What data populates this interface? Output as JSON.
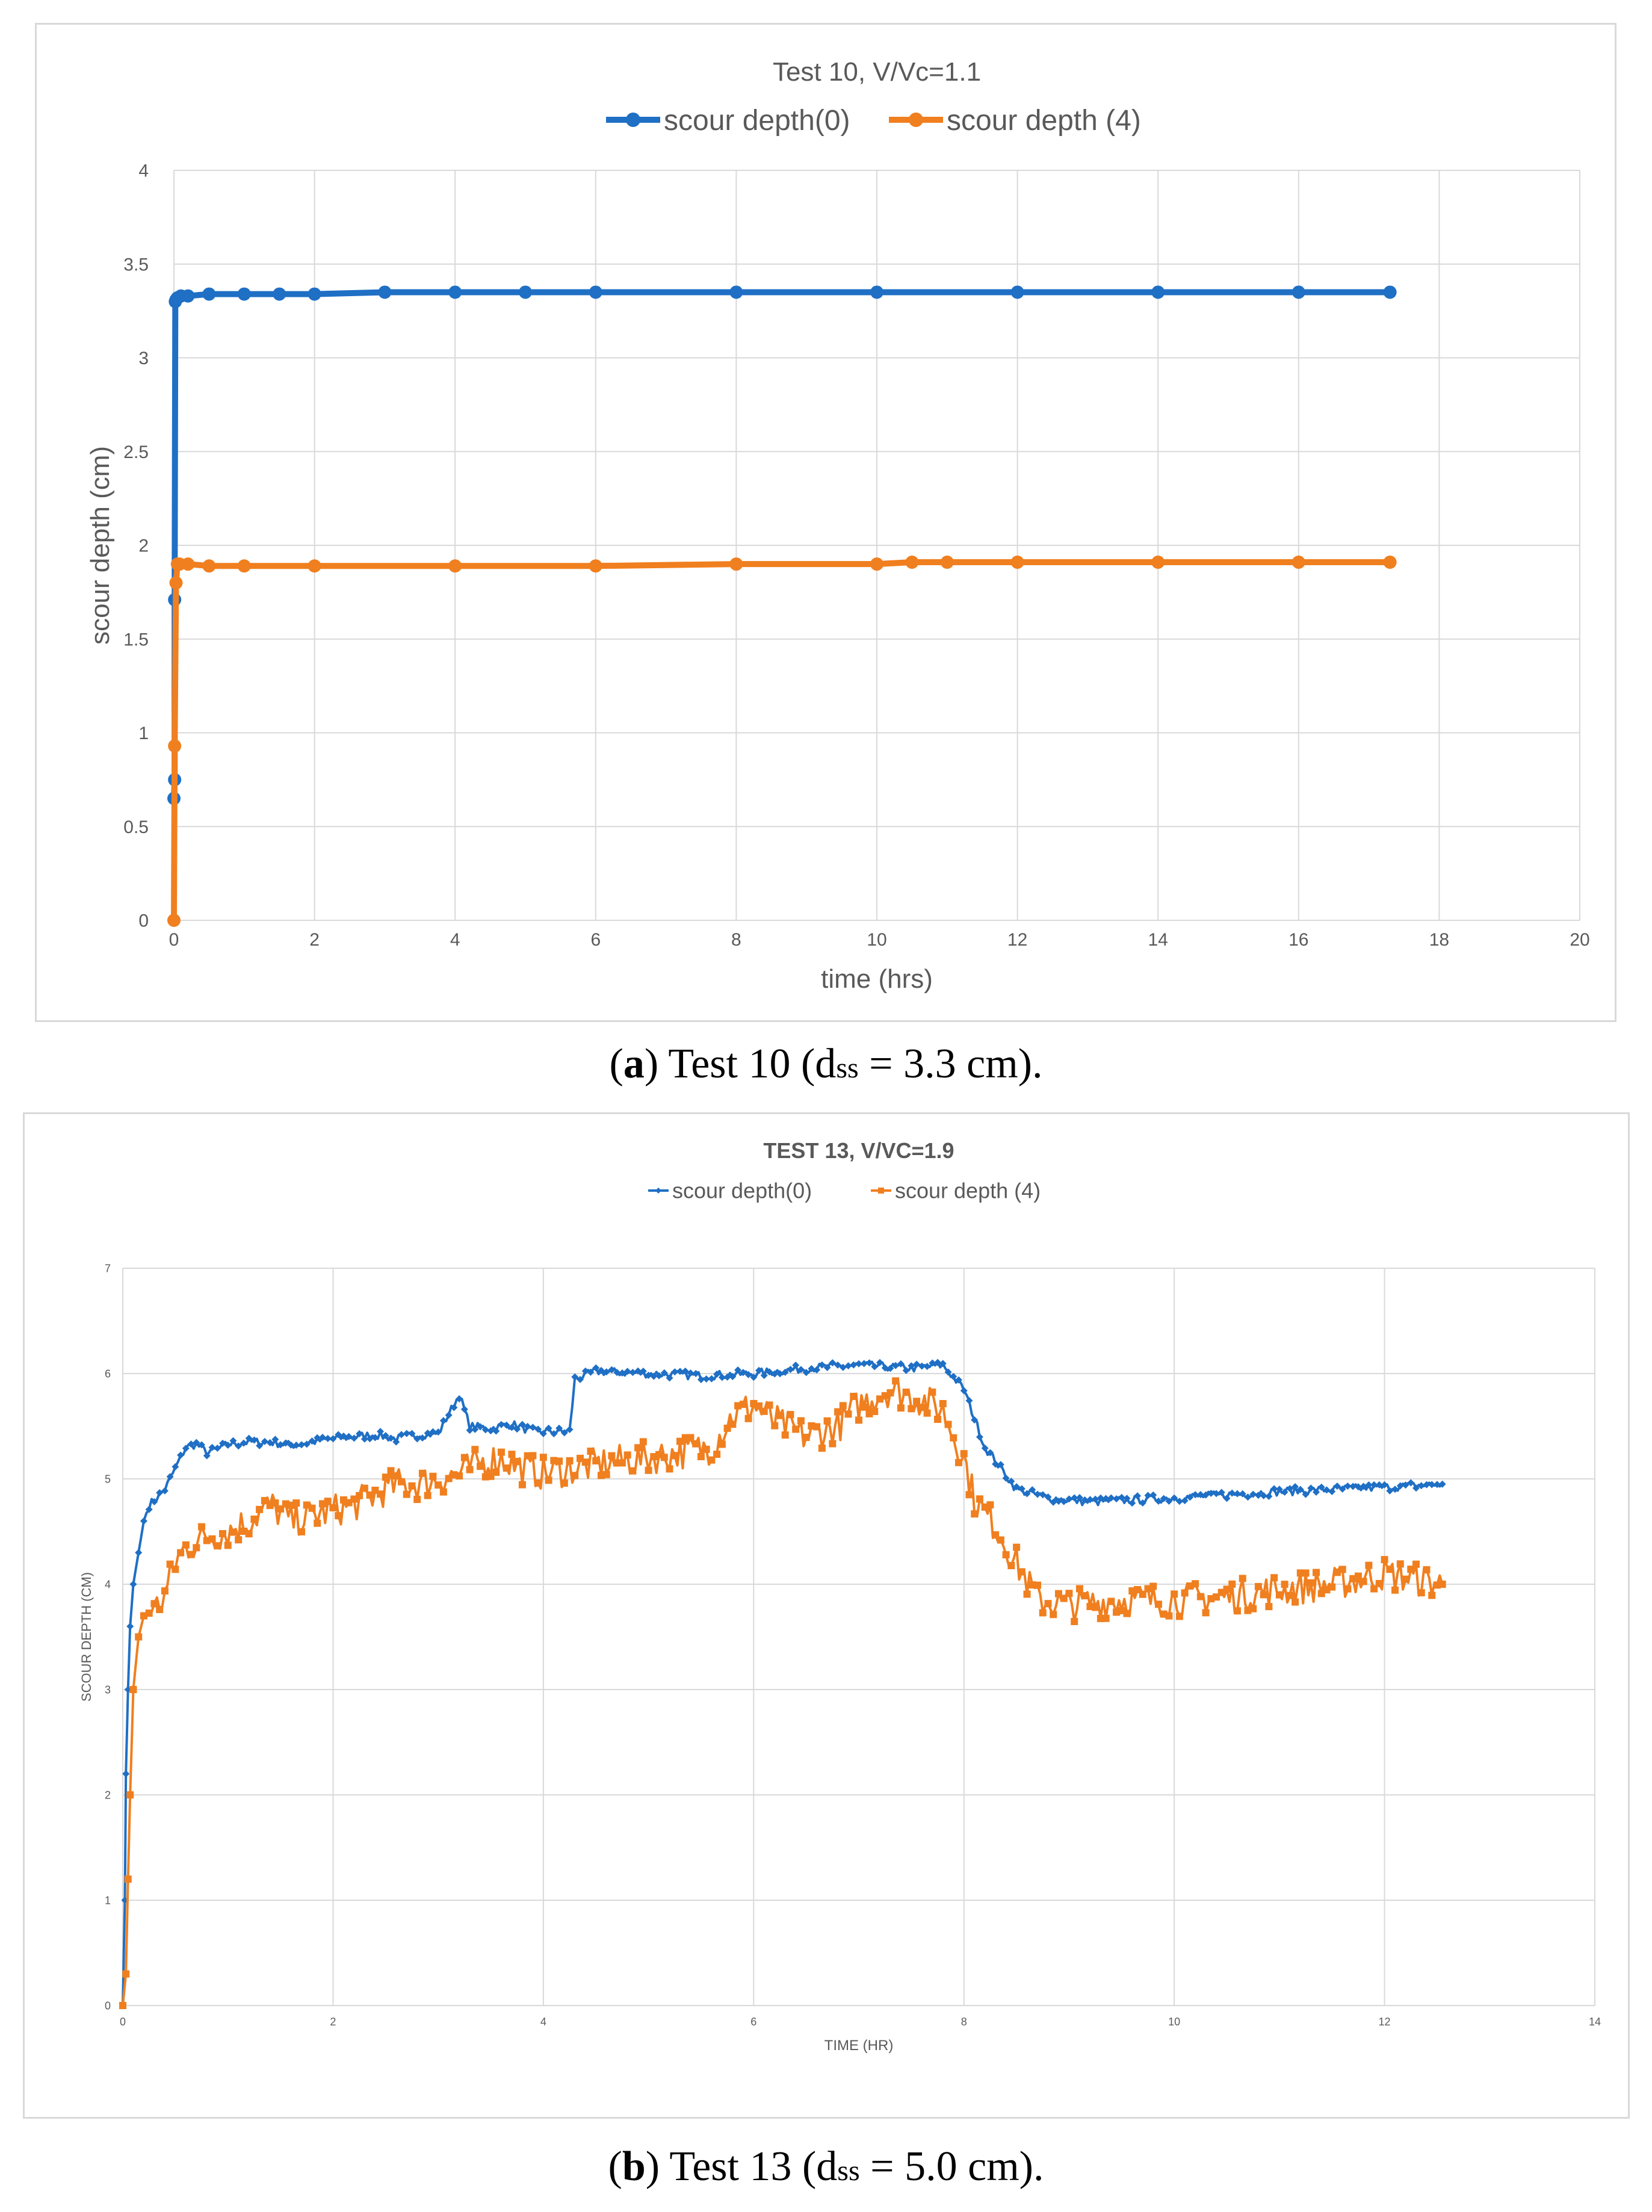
{
  "captions": {
    "a": {
      "label": "a",
      "pre": ") Test 10 (d",
      "sub": "ss",
      "post": " = 3.3 cm)."
    },
    "b": {
      "label": "b",
      "pre": ") Test 13 (d",
      "sub": "ss",
      "post": " = 5.0 cm)."
    }
  },
  "chart_data": [
    {
      "type": "line",
      "title": "Test 10, V/Vc=1.1",
      "xlabel": "time (hrs)",
      "ylabel": "scour depth (cm)",
      "xlim": [
        0,
        20
      ],
      "ylim": [
        0,
        4
      ],
      "xticks": [
        0,
        2,
        4,
        6,
        8,
        10,
        12,
        14,
        16,
        18,
        20
      ],
      "yticks": [
        0,
        0.5,
        1,
        1.5,
        2,
        2.5,
        3,
        3.5,
        4
      ],
      "grid": true,
      "legend": "top",
      "series": [
        {
          "name": "scour depth(0)",
          "color": "#1f6fc5",
          "marker": "circle",
          "x": [
            0,
            0.01,
            0.01,
            0.02,
            0.03,
            0.05,
            0.1,
            0.2,
            0.5,
            1,
            1.5,
            2,
            3,
            4,
            5,
            6,
            8,
            10,
            12,
            14,
            16,
            17.3
          ],
          "y": [
            0.65,
            0.75,
            1.71,
            3.3,
            3.31,
            3.32,
            3.33,
            3.33,
            3.34,
            3.34,
            3.34,
            3.34,
            3.35,
            3.35,
            3.35,
            3.35,
            3.35,
            3.35,
            3.35,
            3.35,
            3.35,
            3.35
          ]
        },
        {
          "name": "scour depth (4)",
          "color": "#f07f1f",
          "marker": "circle",
          "x": [
            0,
            0.01,
            0.03,
            0.05,
            0.08,
            0.2,
            0.5,
            1,
            2,
            4,
            6,
            8,
            10,
            10.5,
            11,
            12,
            14,
            16,
            17.3
          ],
          "y": [
            0,
            0.93,
            1.8,
            1.9,
            1.9,
            1.9,
            1.89,
            1.89,
            1.89,
            1.89,
            1.89,
            1.9,
            1.9,
            1.91,
            1.91,
            1.91,
            1.91,
            1.91,
            1.91
          ]
        }
      ]
    },
    {
      "type": "line",
      "title": "TEST 13, V/VC=1.9",
      "xlabel": "TIME (HR)",
      "ylabel": "SCOUR DEPTH (CM)",
      "xlim": [
        0,
        14
      ],
      "ylim": [
        0,
        7
      ],
      "xticks": [
        0,
        2,
        4,
        6,
        8,
        10,
        12,
        14
      ],
      "yticks": [
        0,
        1,
        2,
        3,
        4,
        5,
        6,
        7
      ],
      "grid": true,
      "legend": "top",
      "series": [
        {
          "name": "scour depth(0)",
          "color": "#1f6fc5",
          "marker": "diamond",
          "x": [
            0,
            0.02,
            0.03,
            0.05,
            0.07,
            0.1,
            0.15,
            0.2,
            0.25,
            0.3,
            0.4,
            0.5,
            0.6,
            0.7,
            0.8,
            0.9,
            1.0,
            1.2,
            1.4,
            1.6,
            1.8,
            2.0,
            2.2,
            2.4,
            2.6,
            2.8,
            3.0,
            3.2,
            3.3,
            3.5,
            3.7,
            3.9,
            4.1,
            4.25,
            4.3,
            4.5,
            5.0,
            5.5,
            6.0,
            6.5,
            7.0,
            7.5,
            7.8,
            8.0,
            8.2,
            8.5,
            8.8,
            9.2,
            9.6,
            10.0,
            10.5,
            11.0,
            11.5,
            12.0,
            12.55
          ],
          "y": [
            0,
            1.0,
            2.2,
            3.0,
            3.6,
            4.0,
            4.3,
            4.6,
            4.75,
            4.8,
            4.9,
            5.1,
            5.3,
            5.33,
            5.25,
            5.28,
            5.33,
            5.35,
            5.35,
            5.32,
            5.35,
            5.38,
            5.4,
            5.42,
            5.38,
            5.42,
            5.43,
            5.8,
            5.5,
            5.48,
            5.52,
            5.45,
            5.45,
            5.45,
            5.95,
            6.02,
            6.0,
            5.98,
            6.0,
            6.05,
            6.08,
            6.05,
            6.08,
            5.85,
            5.3,
            4.9,
            4.82,
            4.78,
            4.8,
            4.82,
            4.85,
            4.88,
            4.9,
            4.92,
            4.95
          ]
        },
        {
          "name": "scour depth (4)",
          "color": "#f07f1f",
          "marker": "square",
          "x": [
            0,
            0.03,
            0.05,
            0.07,
            0.1,
            0.15,
            0.2,
            0.3,
            0.4,
            0.5,
            0.6,
            0.8,
            1.0,
            1.2,
            1.4,
            1.6,
            1.8,
            2.0,
            2.2,
            2.4,
            2.6,
            2.8,
            3.0,
            3.2,
            3.4,
            3.6,
            3.8,
            4.0,
            4.3,
            4.6,
            5.0,
            5.3,
            5.6,
            5.8,
            6.0,
            6.2,
            6.5,
            6.8,
            7.0,
            7.3,
            7.6,
            7.8,
            8.0,
            8.1,
            8.3,
            8.5,
            8.7,
            9.0,
            9.5,
            10.0,
            10.5,
            11.0,
            11.5,
            12.0,
            12.55
          ],
          "y": [
            0,
            0.3,
            1.2,
            2.0,
            3.0,
            3.5,
            3.7,
            3.75,
            3.9,
            4.2,
            4.35,
            4.45,
            4.5,
            4.6,
            4.75,
            4.6,
            4.65,
            4.7,
            4.75,
            4.85,
            4.95,
            4.95,
            5.0,
            5.05,
            5.15,
            5.2,
            5.1,
            5.05,
            5.1,
            5.15,
            5.2,
            5.25,
            5.3,
            5.6,
            5.7,
            5.55,
            5.4,
            5.5,
            5.7,
            5.85,
            5.75,
            5.65,
            5.2,
            4.8,
            4.55,
            4.2,
            3.85,
            3.8,
            3.85,
            3.85,
            3.88,
            3.95,
            4.0,
            4.1,
            4.0
          ]
        }
      ]
    }
  ]
}
